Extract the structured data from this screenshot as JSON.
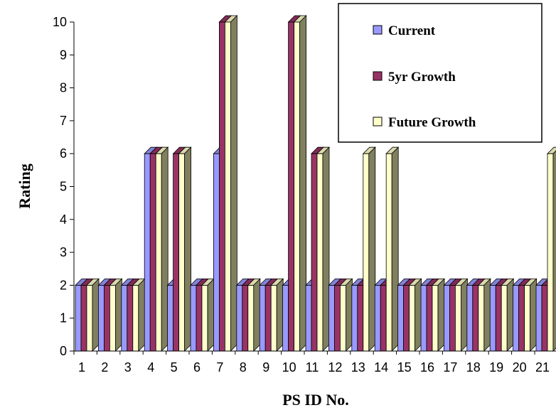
{
  "chart_data": {
    "type": "bar",
    "subtype": "3d-clustered",
    "title": "",
    "xlabel": "PS ID No.",
    "ylabel": "Rating",
    "ylim": [
      0,
      10
    ],
    "y_ticks": [
      0,
      1,
      2,
      3,
      4,
      5,
      6,
      7,
      8,
      9,
      10
    ],
    "grid": false,
    "legend_position": "top-right",
    "categories": [
      "1",
      "2",
      "3",
      "4",
      "5",
      "6",
      "7",
      "8",
      "9",
      "10",
      "11",
      "12",
      "13",
      "14",
      "15",
      "16",
      "17",
      "18",
      "19",
      "20",
      "21"
    ],
    "series": [
      {
        "name": "Current",
        "color": "#9999ff",
        "values": [
          2,
          2,
          2,
          6,
          2,
          2,
          6,
          2,
          2,
          2,
          2,
          2,
          2,
          2,
          2,
          2,
          2,
          2,
          2,
          2,
          2
        ]
      },
      {
        "name": "5yr Growth",
        "color": "#993366",
        "values": [
          2,
          2,
          2,
          6,
          6,
          2,
          10,
          2,
          2,
          10,
          6,
          2,
          2,
          2,
          2,
          2,
          2,
          2,
          2,
          2,
          2
        ]
      },
      {
        "name": "Future Growth",
        "color": "#ffffcc",
        "values": [
          2,
          2,
          2,
          6,
          6,
          2,
          10,
          2,
          2,
          10,
          6,
          2,
          6,
          6,
          2,
          2,
          2,
          2,
          2,
          2,
          6
        ]
      }
    ]
  }
}
